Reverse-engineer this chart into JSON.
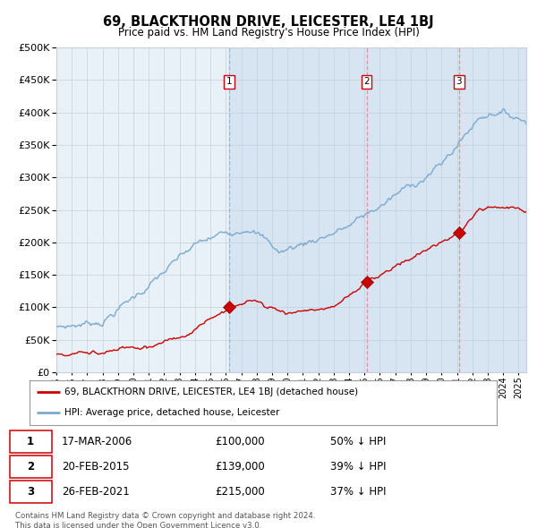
{
  "title": "69, BLACKTHORN DRIVE, LEICESTER, LE4 1BJ",
  "subtitle": "Price paid vs. HM Land Registry's House Price Index (HPI)",
  "legend_label_red": "69, BLACKTHORN DRIVE, LEICESTER, LE4 1BJ (detached house)",
  "legend_label_blue": "HPI: Average price, detached house, Leicester",
  "transactions": [
    {
      "label": "1",
      "date": "17-MAR-2006",
      "price": 100000,
      "note": "50% ↓ HPI",
      "x": 2006.21
    },
    {
      "label": "2",
      "date": "20-FEB-2015",
      "price": 139000,
      "note": "39% ↓ HPI",
      "x": 2015.13
    },
    {
      "label": "3",
      "date": "26-FEB-2021",
      "price": 215000,
      "note": "37% ↓ HPI",
      "x": 2021.13
    }
  ],
  "xmin": 1995.0,
  "xmax": 2025.5,
  "ymin": 0,
  "ymax": 500000,
  "yticks": [
    0,
    50000,
    100000,
    150000,
    200000,
    250000,
    300000,
    350000,
    400000,
    450000,
    500000
  ],
  "background_color": "#ffffff",
  "plot_bg_color": "#e8f0f8",
  "grid_color": "#c8d0dc",
  "red_line_color": "#cc0000",
  "blue_line_color": "#7aaad0",
  "dashed_line_color_blue": "#a0b8cc",
  "dashed_line_color_red": "#dd9999",
  "footnote": "Contains HM Land Registry data © Crown copyright and database right 2024.\nThis data is licensed under the Open Government Licence v3.0.",
  "font_family": "DejaVu Sans"
}
